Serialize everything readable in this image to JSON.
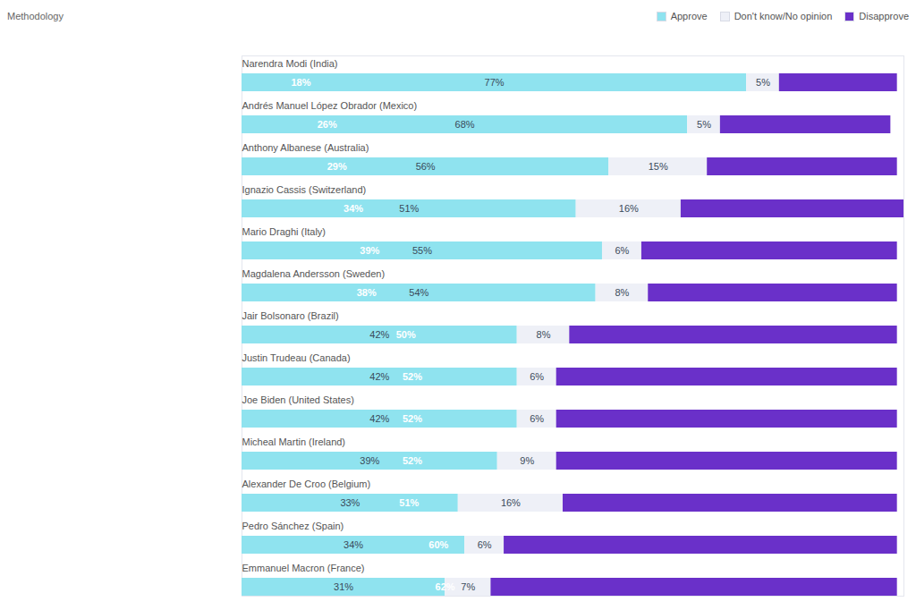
{
  "chart_data": {
    "type": "bar",
    "subtitle": "Methodology",
    "orientation": "horizontal",
    "stacked": true,
    "data_labels": true,
    "tick_labels": false,
    "grid": false,
    "legend": "top-right",
    "categories": [
      "Narendra Modi (India)",
      "Andrés Manuel López Obrador (Mexico)",
      "Anthony Albanese (Australia)",
      "Ignazio Cassis (Switzerland)",
      "Mario Draghi (Italy)",
      "Magdalena Andersson (Sweden)",
      "Jair Bolsonaro (Brazil)",
      "Justin Trudeau (Canada)",
      "Joe Biden (United States)",
      "Micheal Martin (Ireland)",
      "Alexander De Croo (Belgium)",
      "Pedro Sánchez (Spain)",
      "Emmanuel Macron (France)"
    ],
    "series": [
      {
        "name": "Approve",
        "color": "#8fe3ef",
        "values": [
          77,
          68,
          56,
          51,
          55,
          54,
          42,
          42,
          42,
          39,
          33,
          34,
          31
        ],
        "value_labels": [
          "77%",
          "68%",
          "56%",
          "51%",
          "55%",
          "54%",
          "42%",
          "42%",
          "42%",
          "39%",
          "33%",
          "34%",
          "31%"
        ]
      },
      {
        "name": "Don't know/No opinion",
        "color": "#eef0f7",
        "values": [
          5,
          5,
          15,
          16,
          6,
          8,
          8,
          6,
          6,
          9,
          16,
          6,
          7
        ],
        "value_labels": [
          "5%",
          "5%",
          "15%",
          "16%",
          "6%",
          "8%",
          "8%",
          "6%",
          "6%",
          "9%",
          "16%",
          "6%",
          "7%"
        ]
      },
      {
        "name": "Disapprove",
        "color": "#6a30c9",
        "values": [
          18,
          26,
          29,
          34,
          39,
          38,
          50,
          52,
          52,
          52,
          51,
          60,
          62
        ],
        "value_labels": [
          "18%",
          "26%",
          "29%",
          "34%",
          "39%",
          "38%",
          "50%",
          "52%",
          "52%",
          "52%",
          "51%",
          "60%",
          "62%"
        ]
      }
    ],
    "xlim": [
      0,
      101
    ],
    "xticks": []
  }
}
